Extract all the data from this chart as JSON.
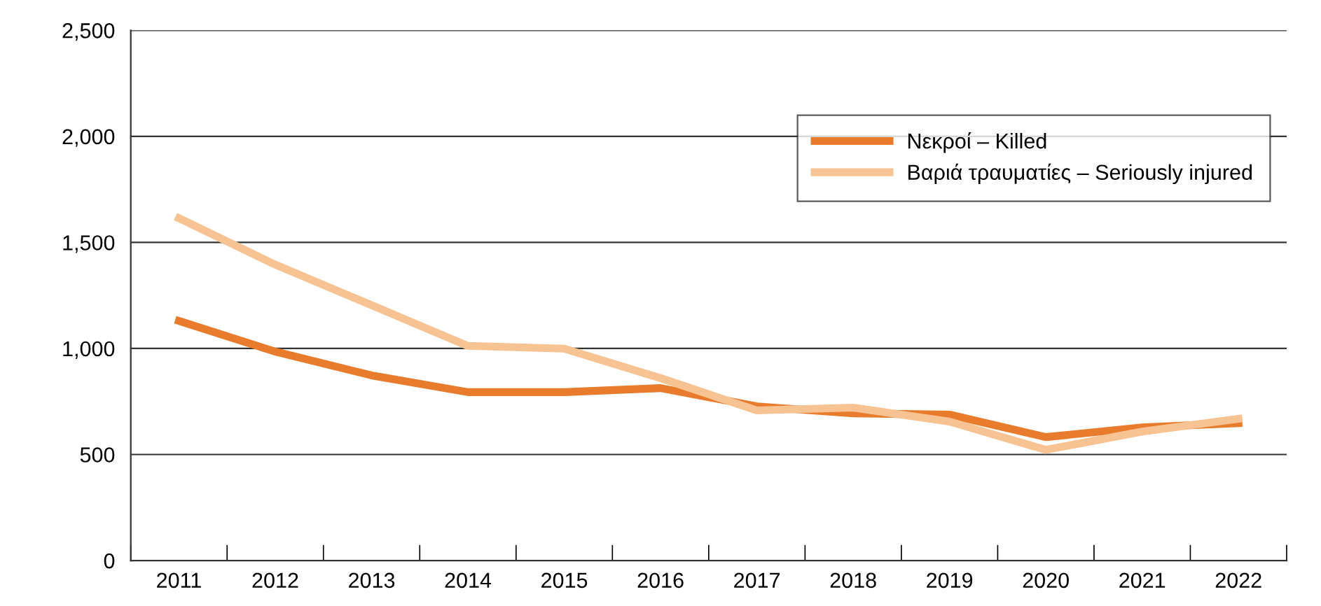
{
  "chart_data": {
    "type": "line",
    "categories": [
      "2011",
      "2012",
      "2013",
      "2014",
      "2015",
      "2016",
      "2017",
      "2018",
      "2019",
      "2020",
      "2021",
      "2022"
    ],
    "series": [
      {
        "name": "Νεκροί – Killed",
        "color": "#e87b2c",
        "values": [
          1130,
          985,
          873,
          794,
          794,
          813,
          727,
          694,
          688,
          582,
          628,
          648
        ]
      },
      {
        "name": "Βαριά τραυματίες – Seriously injured",
        "color": "#f7c393",
        "values": [
          1614,
          1395,
          1204,
          1012,
          999,
          860,
          708,
          721,
          655,
          522,
          608,
          668
        ]
      }
    ],
    "ylim": [
      0,
      2500
    ],
    "yticks": [
      0,
      {
        "value": 500,
        "label": "500"
      },
      {
        "value": 1000,
        "label": "1,000"
      },
      {
        "value": 1500,
        "label": "1,500"
      },
      {
        "value": 2000,
        "label": "2,000"
      },
      {
        "value": 2500,
        "label": "2,500"
      }
    ],
    "grid": "y",
    "legend": "top right",
    "line_style": "solid",
    "marker": "none"
  }
}
